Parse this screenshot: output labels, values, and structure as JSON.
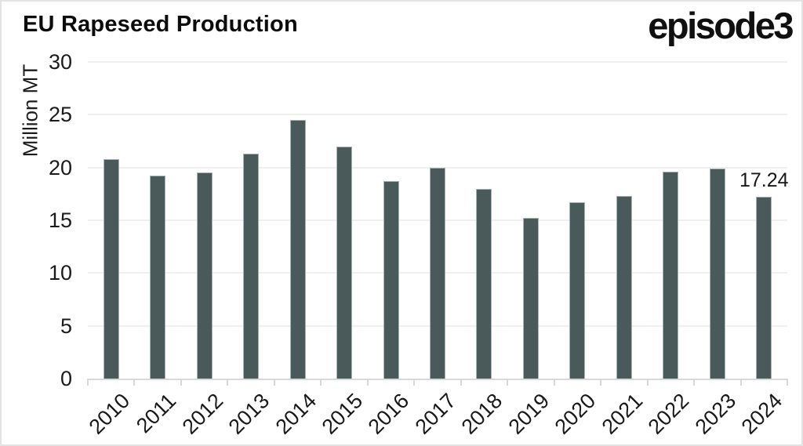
{
  "header": {
    "title": "EU Rapeseed Production",
    "logo_text": "episode3"
  },
  "chart_data": {
    "type": "bar",
    "title": "EU Rapeseed Production",
    "xlabel": "",
    "ylabel": "Million MT",
    "categories": [
      "2010",
      "2011",
      "2012",
      "2013",
      "2014",
      "2015",
      "2016",
      "2017",
      "2018",
      "2019",
      "2020",
      "2021",
      "2022",
      "2023",
      "2024"
    ],
    "values": [
      20.8,
      19.2,
      19.5,
      21.3,
      24.5,
      22.0,
      18.7,
      20.0,
      18.0,
      15.2,
      16.7,
      17.3,
      19.6,
      19.9,
      17.24
    ],
    "point_labels": [
      null,
      null,
      null,
      null,
      null,
      null,
      null,
      null,
      null,
      null,
      null,
      null,
      null,
      null,
      "17.24"
    ],
    "ylim": [
      0,
      30
    ],
    "yticks": [
      0,
      5,
      10,
      15,
      20,
      25,
      30
    ],
    "grid": true,
    "legend_position": "none",
    "x_label_rotation": -45,
    "colors": {
      "bar_fill": "#4a5a5a",
      "gridline": "#efefef",
      "axis_line": "#d8d8d8",
      "text": "#1b1b1b",
      "title": "#0c0c0c",
      "background": "#ffffff"
    }
  }
}
